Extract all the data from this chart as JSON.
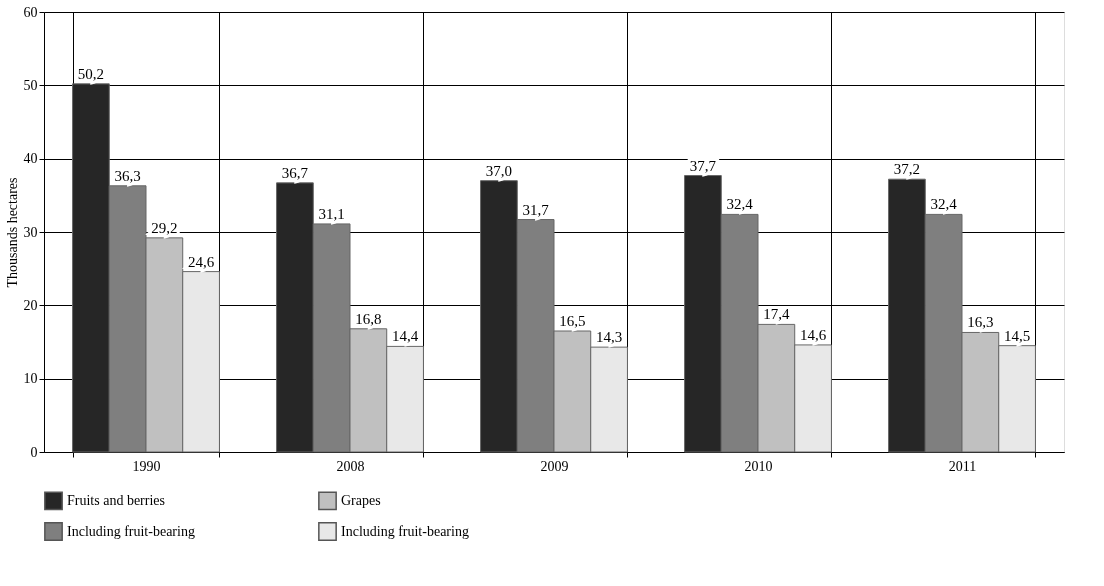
{
  "chart_data": {
    "type": "bar",
    "ylabel": "Thousands hectares",
    "categories": [
      "1990",
      "2008",
      "2009",
      "2010",
      "2011"
    ],
    "series": [
      {
        "name": "Fruits and berries",
        "color": "#262626",
        "values": [
          50.2,
          36.7,
          37.0,
          37.7,
          37.2
        ],
        "value_labels": [
          "50,2",
          "36,7",
          "37,0",
          "37,7",
          "37,2"
        ]
      },
      {
        "name": "Including fruit-bearing",
        "color": "#7f7f7f",
        "values": [
          36.3,
          31.1,
          31.7,
          32.4,
          32.4
        ],
        "value_labels": [
          "36,3",
          "31,1",
          "31,7",
          "32,4",
          "32,4"
        ]
      },
      {
        "name": "Grapes",
        "color": "#c0c0c0",
        "values": [
          29.2,
          16.8,
          16.5,
          17.4,
          16.3
        ],
        "value_labels": [
          "29,2",
          "16,8",
          "16,5",
          "17,4",
          "16,3"
        ]
      },
      {
        "name": "Including fruit-bearing",
        "color": "#e8e8e8",
        "values": [
          24.6,
          14.4,
          14.3,
          14.6,
          14.5
        ],
        "value_labels": [
          "24,6",
          "14,4",
          "14,3",
          "14,6",
          "14,5"
        ]
      }
    ],
    "ylim": [
      0,
      60
    ],
    "yticks": [
      0,
      10,
      20,
      30,
      40,
      50,
      60
    ],
    "grid": true,
    "legend": "bottom"
  }
}
